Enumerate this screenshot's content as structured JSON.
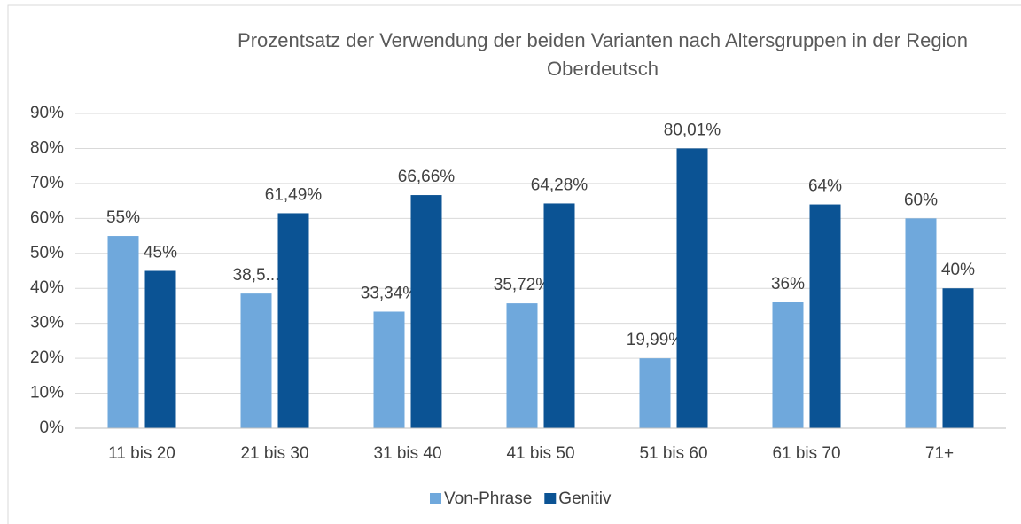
{
  "chart_data": {
    "type": "bar",
    "title": "Prozentsatz der Verwendung der beiden Varianten nach Altersgruppen in der Region Oberdeutsch",
    "categories": [
      "11 bis 20",
      "21 bis 30",
      "31 bis 40",
      "41 bis 50",
      "51 bis 60",
      "61 bis 70",
      "71+"
    ],
    "series": [
      {
        "name": "Von-Phrase",
        "color": "#6fa8dc",
        "values": [
          55,
          38.5,
          33.34,
          35.72,
          19.99,
          36,
          60
        ],
        "value_labels": [
          "55%",
          "38,5...",
          "33,34%",
          "35,72%",
          "19,99%",
          "36%",
          "60%"
        ]
      },
      {
        "name": "Genitiv",
        "color": "#0b5394",
        "values": [
          45,
          61.49,
          66.66,
          64.28,
          80.01,
          64,
          40
        ],
        "value_labels": [
          "45%",
          "61,49%",
          "66,66%",
          "64,28%",
          "80,01%",
          "64%",
          "40%"
        ]
      }
    ],
    "ylim": [
      0,
      90
    ],
    "yticks": [
      {
        "value": 0,
        "label": "0%"
      },
      {
        "value": 10,
        "label": "10%"
      },
      {
        "value": 20,
        "label": "20%"
      },
      {
        "value": 30,
        "label": "30%"
      },
      {
        "value": 40,
        "label": "40%"
      },
      {
        "value": 50,
        "label": "50%"
      },
      {
        "value": 60,
        "label": "60%"
      },
      {
        "value": 70,
        "label": "70%"
      },
      {
        "value": 80,
        "label": "80%"
      },
      {
        "value": 90,
        "label": "90%"
      }
    ],
    "grid": true,
    "legend": "bottom"
  }
}
